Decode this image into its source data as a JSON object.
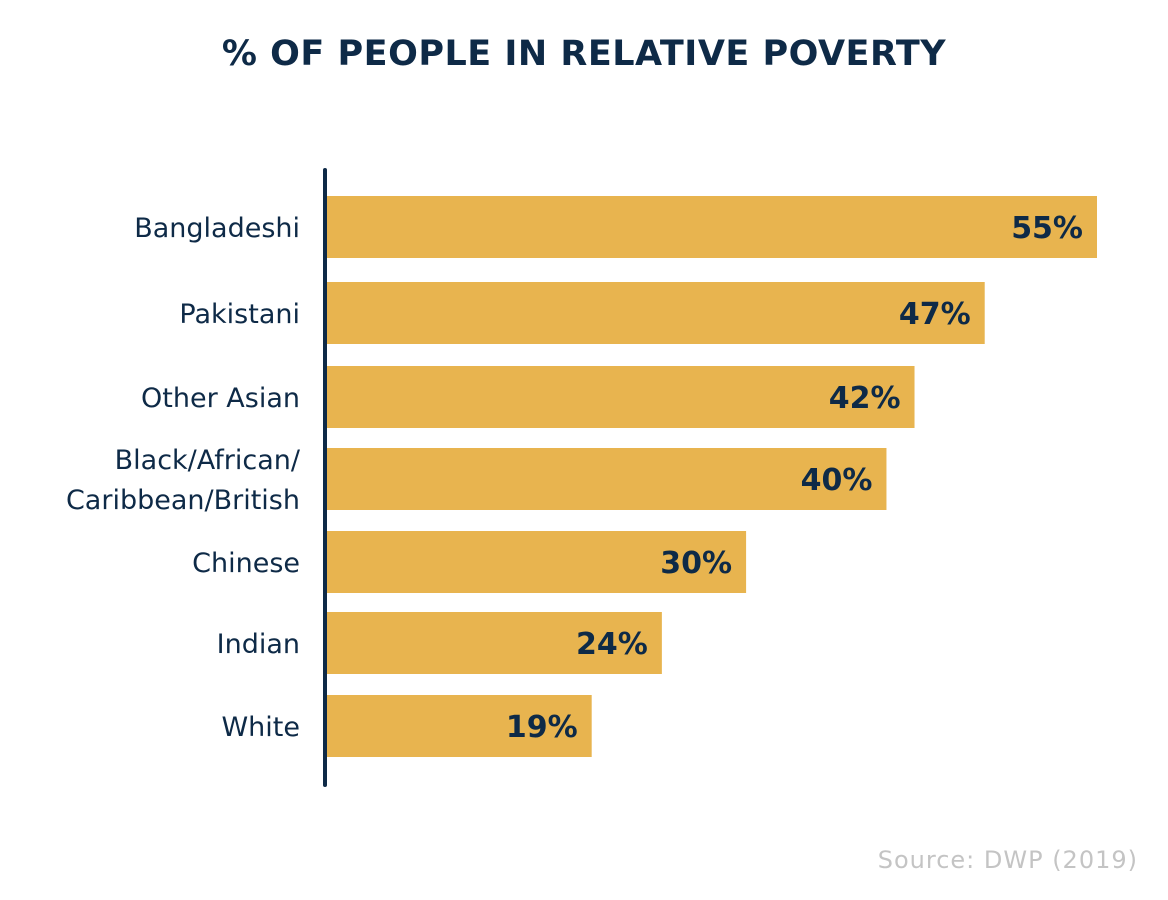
{
  "chart_data": {
    "type": "bar",
    "orientation": "horizontal",
    "title": "% OF PEOPLE IN RELATIVE POVERTY",
    "categories": [
      "Bangladeshi",
      "Pakistani",
      "Other Asian",
      "Black/African/\nCaribbean/British",
      "Chinese",
      "Indian",
      "White"
    ],
    "values": [
      55,
      47,
      42,
      40,
      30,
      24,
      19
    ],
    "value_labels": [
      "55%",
      "47%",
      "42%",
      "40%",
      "30%",
      "24%",
      "19%"
    ],
    "xlim": [
      0,
      55
    ],
    "grid": false,
    "legend": "none",
    "source": "Source: DWP (2019)"
  },
  "colors": {
    "bar": "#e8b44f",
    "axis": "#0e2a47",
    "text": "#0e2a47",
    "source": "#c4c4c4"
  }
}
